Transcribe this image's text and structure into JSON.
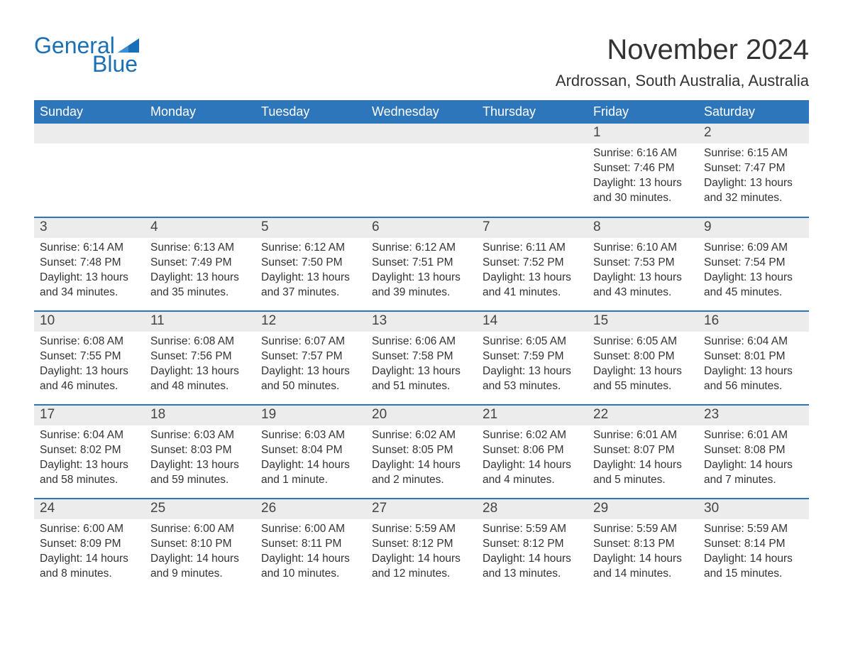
{
  "logo": {
    "text_general": "General",
    "text_blue": "Blue",
    "flag_color": "#1a6fb5"
  },
  "title": "November 2024",
  "location": "Ardrossan, South Australia, Australia",
  "colors": {
    "header_bg": "#2d76bb",
    "header_fg": "#ffffff",
    "day_band_bg": "#ececec",
    "rule": "#2d76bb",
    "page_bg": "#ffffff",
    "text": "#333333"
  },
  "typography": {
    "title_fontsize": 40,
    "location_fontsize": 22,
    "header_fontsize": 18,
    "daynum_fontsize": 19,
    "body_fontsize": 15.5
  },
  "calendar": {
    "type": "table",
    "columns": [
      "Sunday",
      "Monday",
      "Tuesday",
      "Wednesday",
      "Thursday",
      "Friday",
      "Saturday"
    ],
    "first_weekday_index": 5,
    "days": [
      {
        "n": 1,
        "sunrise": "6:16 AM",
        "sunset": "7:46 PM",
        "daylight": "13 hours and 30 minutes."
      },
      {
        "n": 2,
        "sunrise": "6:15 AM",
        "sunset": "7:47 PM",
        "daylight": "13 hours and 32 minutes."
      },
      {
        "n": 3,
        "sunrise": "6:14 AM",
        "sunset": "7:48 PM",
        "daylight": "13 hours and 34 minutes."
      },
      {
        "n": 4,
        "sunrise": "6:13 AM",
        "sunset": "7:49 PM",
        "daylight": "13 hours and 35 minutes."
      },
      {
        "n": 5,
        "sunrise": "6:12 AM",
        "sunset": "7:50 PM",
        "daylight": "13 hours and 37 minutes."
      },
      {
        "n": 6,
        "sunrise": "6:12 AM",
        "sunset": "7:51 PM",
        "daylight": "13 hours and 39 minutes."
      },
      {
        "n": 7,
        "sunrise": "6:11 AM",
        "sunset": "7:52 PM",
        "daylight": "13 hours and 41 minutes."
      },
      {
        "n": 8,
        "sunrise": "6:10 AM",
        "sunset": "7:53 PM",
        "daylight": "13 hours and 43 minutes."
      },
      {
        "n": 9,
        "sunrise": "6:09 AM",
        "sunset": "7:54 PM",
        "daylight": "13 hours and 45 minutes."
      },
      {
        "n": 10,
        "sunrise": "6:08 AM",
        "sunset": "7:55 PM",
        "daylight": "13 hours and 46 minutes."
      },
      {
        "n": 11,
        "sunrise": "6:08 AM",
        "sunset": "7:56 PM",
        "daylight": "13 hours and 48 minutes."
      },
      {
        "n": 12,
        "sunrise": "6:07 AM",
        "sunset": "7:57 PM",
        "daylight": "13 hours and 50 minutes."
      },
      {
        "n": 13,
        "sunrise": "6:06 AM",
        "sunset": "7:58 PM",
        "daylight": "13 hours and 51 minutes."
      },
      {
        "n": 14,
        "sunrise": "6:05 AM",
        "sunset": "7:59 PM",
        "daylight": "13 hours and 53 minutes."
      },
      {
        "n": 15,
        "sunrise": "6:05 AM",
        "sunset": "8:00 PM",
        "daylight": "13 hours and 55 minutes."
      },
      {
        "n": 16,
        "sunrise": "6:04 AM",
        "sunset": "8:01 PM",
        "daylight": "13 hours and 56 minutes."
      },
      {
        "n": 17,
        "sunrise": "6:04 AM",
        "sunset": "8:02 PM",
        "daylight": "13 hours and 58 minutes."
      },
      {
        "n": 18,
        "sunrise": "6:03 AM",
        "sunset": "8:03 PM",
        "daylight": "13 hours and 59 minutes."
      },
      {
        "n": 19,
        "sunrise": "6:03 AM",
        "sunset": "8:04 PM",
        "daylight": "14 hours and 1 minute."
      },
      {
        "n": 20,
        "sunrise": "6:02 AM",
        "sunset": "8:05 PM",
        "daylight": "14 hours and 2 minutes."
      },
      {
        "n": 21,
        "sunrise": "6:02 AM",
        "sunset": "8:06 PM",
        "daylight": "14 hours and 4 minutes."
      },
      {
        "n": 22,
        "sunrise": "6:01 AM",
        "sunset": "8:07 PM",
        "daylight": "14 hours and 5 minutes."
      },
      {
        "n": 23,
        "sunrise": "6:01 AM",
        "sunset": "8:08 PM",
        "daylight": "14 hours and 7 minutes."
      },
      {
        "n": 24,
        "sunrise": "6:00 AM",
        "sunset": "8:09 PM",
        "daylight": "14 hours and 8 minutes."
      },
      {
        "n": 25,
        "sunrise": "6:00 AM",
        "sunset": "8:10 PM",
        "daylight": "14 hours and 9 minutes."
      },
      {
        "n": 26,
        "sunrise": "6:00 AM",
        "sunset": "8:11 PM",
        "daylight": "14 hours and 10 minutes."
      },
      {
        "n": 27,
        "sunrise": "5:59 AM",
        "sunset": "8:12 PM",
        "daylight": "14 hours and 12 minutes."
      },
      {
        "n": 28,
        "sunrise": "5:59 AM",
        "sunset": "8:12 PM",
        "daylight": "14 hours and 13 minutes."
      },
      {
        "n": 29,
        "sunrise": "5:59 AM",
        "sunset": "8:13 PM",
        "daylight": "14 hours and 14 minutes."
      },
      {
        "n": 30,
        "sunrise": "5:59 AM",
        "sunset": "8:14 PM",
        "daylight": "14 hours and 15 minutes."
      }
    ],
    "labels": {
      "sunrise": "Sunrise: ",
      "sunset": "Sunset: ",
      "daylight": "Daylight: "
    }
  }
}
